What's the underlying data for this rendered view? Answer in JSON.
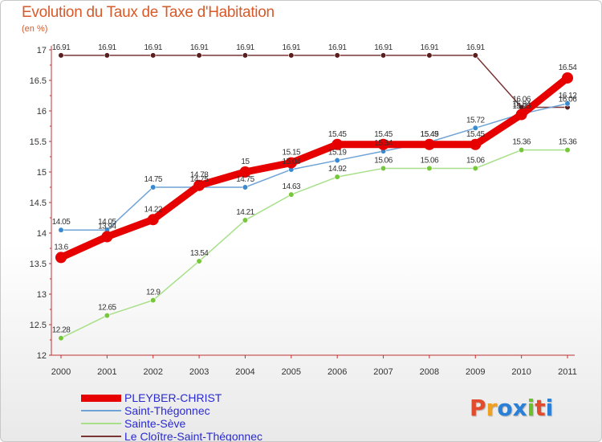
{
  "header": {
    "title": "Evolution du Taux de Taxe d'Habitation",
    "unit": "(en %)"
  },
  "brand": {
    "text": "Proxiti",
    "letter_colors": [
      "#e24b2b",
      "#f0a020",
      "#2a7fd6",
      "#2a7fd6",
      "#6abf2a",
      "#e24b2b",
      "#2a7fd6"
    ]
  },
  "chart_data": {
    "type": "line",
    "title": "Evolution du Taux de Taxe d'Habitation",
    "ylabel": "(en %)",
    "xlabel": "",
    "x": [
      "2000",
      "2001",
      "2002",
      "2003",
      "2004",
      "2005",
      "2006",
      "2007",
      "2008",
      "2009",
      "2010",
      "2011"
    ],
    "ylim": [
      12,
      17
    ],
    "yticks": [
      "12",
      "12.5",
      "13",
      "13.5",
      "14",
      "14.5",
      "15",
      "15.5",
      "16",
      "16.5",
      "17"
    ],
    "grid": false,
    "legend_position": "bottom-left",
    "series": [
      {
        "name": "PLEYBER-CHRIST",
        "color": "#e60000",
        "emphasis": true,
        "values": [
          13.6,
          13.94,
          14.22,
          14.78,
          15,
          15.15,
          15.45,
          15.45,
          15.45,
          15.45,
          15.94,
          16.54
        ],
        "labels": [
          "13.6",
          "13.94",
          "14.22",
          "14.78",
          "15",
          "15.15",
          "15.45",
          "15.45",
          "15.45",
          "15.45",
          "15.94",
          "16.54"
        ]
      },
      {
        "name": "Saint-Thégonnec",
        "color": "#6fa3d6",
        "marker": "#3a8ad0",
        "values": [
          14.05,
          14.05,
          14.75,
          14.75,
          14.75,
          15.04,
          15.19,
          15.34,
          15.49,
          15.72,
          15.95,
          16.12
        ],
        "labels": [
          "14.05",
          "14.05",
          "14.75",
          "14.75",
          "14.75",
          "15.04",
          "15.19",
          "15.34",
          "15.49",
          "15.72",
          "15.95",
          "16.12"
        ]
      },
      {
        "name": "Sainte-Sève",
        "color": "#a8e08a",
        "marker": "#76c83a",
        "values": [
          12.28,
          12.65,
          12.9,
          13.54,
          14.21,
          14.63,
          14.92,
          15.06,
          15.06,
          15.06,
          15.36,
          15.36
        ],
        "labels": [
          "12.28",
          "12.65",
          "12.9",
          "13.54",
          "14.21",
          "14.63",
          "14.92",
          "15.06",
          "15.06",
          "15.06",
          "15.36",
          "15.36"
        ]
      },
      {
        "name": "Le Cloître-Saint-Thégonnec",
        "color": "#7a3535",
        "marker": "#5a1e1e",
        "values": [
          16.91,
          16.91,
          16.91,
          16.91,
          16.91,
          16.91,
          16.91,
          16.91,
          16.91,
          16.91,
          16.06,
          16.06
        ],
        "labels": [
          "16.91",
          "16.91",
          "16.91",
          "16.91",
          "16.91",
          "16.91",
          "16.91",
          "16.91",
          "16.91",
          "16.91",
          "16.06",
          "16.06"
        ]
      }
    ]
  }
}
